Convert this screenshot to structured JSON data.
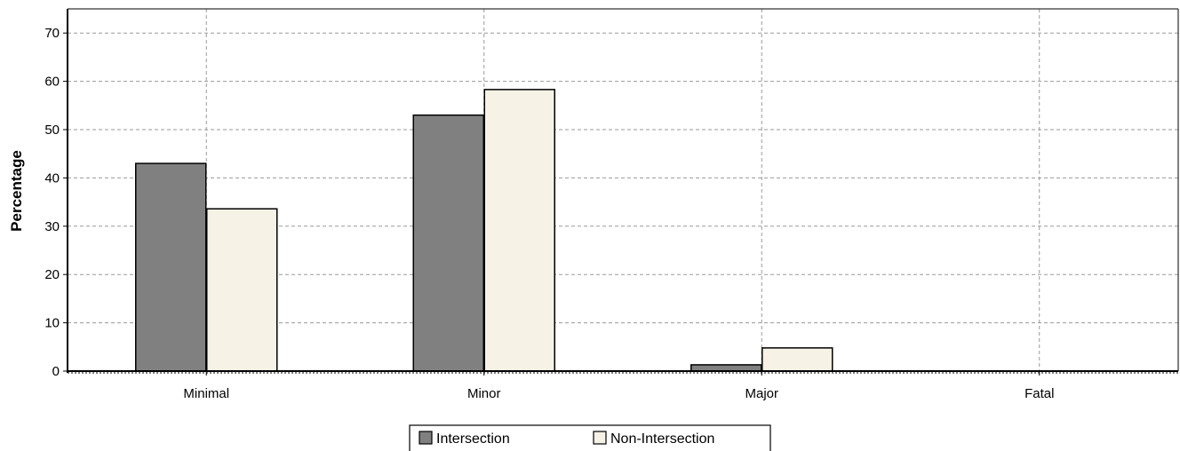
{
  "chart_data": {
    "type": "bar",
    "title": "",
    "xlabel": "",
    "ylabel": "Percentage",
    "categories": [
      "Minimal",
      "Minor",
      "Major",
      "Fatal"
    ],
    "series": [
      {
        "name": "Intersection",
        "values": [
          43,
          53,
          1.3,
          0
        ],
        "color": "#808080"
      },
      {
        "name": "Non-Intersection",
        "values": [
          33.6,
          58.3,
          4.8,
          0
        ],
        "color": "#f6f2e6"
      }
    ],
    "ylim": [
      0,
      75
    ],
    "yticks": [
      0,
      10,
      20,
      30,
      40,
      50,
      60,
      70
    ],
    "grid": true,
    "legend_position": "bottom-center"
  }
}
